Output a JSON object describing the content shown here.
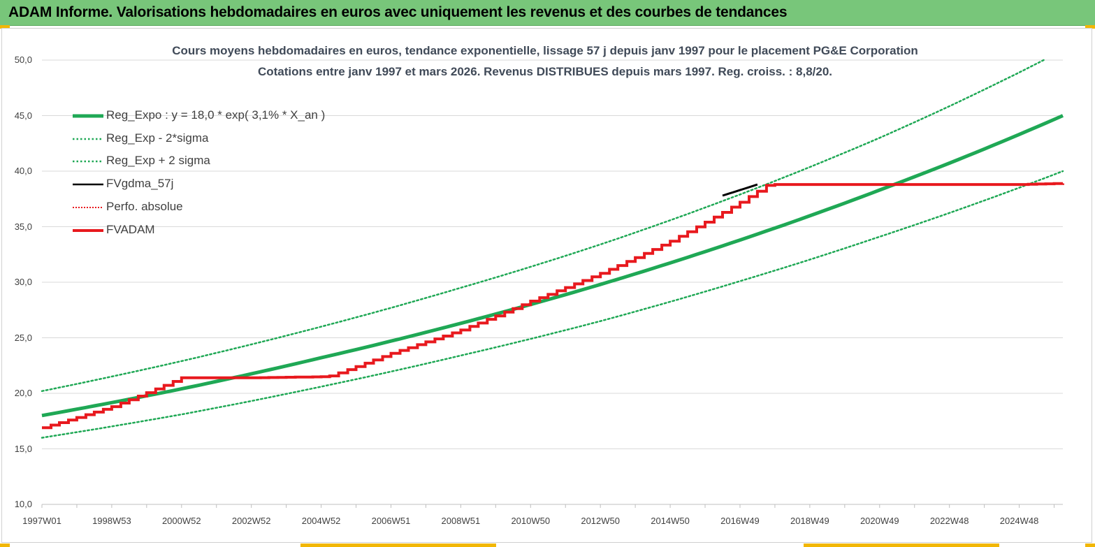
{
  "banner": {
    "title": "ADAM Informe. Valorisations hebdomadaires en euros avec uniquement les revenus et des courbes de tendances"
  },
  "colors": {
    "banner_bg": "#78c67a",
    "accent_corner": "#f2b705",
    "trend": "#1fa855",
    "fvadam": "#e8191e",
    "fvgdma": "#000000",
    "perfo": "#e8191e",
    "title_text": "#404a58"
  },
  "chart_data": {
    "type": "line",
    "title_line1": "Cours moyens hebdomadaires en euros, tendance exponentielle, lissage 57 j depuis janv 1997 pour le  placement PG&E Corporation",
    "title_line2": "Cotations entre janv 1997 et mars 2026. Revenus  DISTRIBUES depuis mars 1997.  Reg. croiss. : 8,8/20.",
    "ylim": [
      10,
      50
    ],
    "y_ticks": [
      "50,0",
      "45,0",
      "40,0",
      "35,0",
      "30,0",
      "25,0",
      "20,0",
      "15,0",
      "10,0"
    ],
    "y_tick_values": [
      50,
      45,
      40,
      35,
      30,
      25,
      20,
      15,
      10
    ],
    "x_range": [
      1997.0,
      2026.25
    ],
    "x_ticks": [
      "1997W01",
      "1998W53",
      "2000W52",
      "2002W52",
      "2004W52",
      "2006W51",
      "2008W51",
      "2010W50",
      "2012W50",
      "2014W50",
      "2016W49",
      "2018W49",
      "2020W49",
      "2022W48",
      "2024W48"
    ],
    "x_tick_values": [
      1997.0,
      1999.0,
      2001.0,
      2003.0,
      2005.0,
      2007.0,
      2009.0,
      2011.0,
      2013.0,
      2015.0,
      2017.0,
      2019.0,
      2021.0,
      2023.0,
      2025.0
    ],
    "grid": "horizontal",
    "legend_position": "top-left",
    "legend": [
      {
        "key": "reg_expo",
        "label": "Reg_Expo : y = 18,0 * exp( 3,1% *  X_an )",
        "style": "thick-solid",
        "color": "#1fa855"
      },
      {
        "key": "reg_minus",
        "label": "Reg_Exp - 2*sigma",
        "style": "dotted",
        "color": "#1fa855"
      },
      {
        "key": "reg_plus",
        "label": "Reg_Exp + 2 sigma",
        "style": "dotted",
        "color": "#1fa855"
      },
      {
        "key": "fvgdma",
        "label": "FVgdma_57j",
        "style": "solid",
        "color": "#000000"
      },
      {
        "key": "perfo",
        "label": "Perfo. absolue",
        "style": "dotted",
        "color": "#e8191e"
      },
      {
        "key": "fvadam",
        "label": "FVADAM",
        "style": "thick-solid",
        "color": "#e8191e"
      }
    ],
    "series": [
      {
        "name": "Reg_Expo : y = 18,0 * exp( 3,1% *  X_an )",
        "key": "reg_expo",
        "x": [
          1997.0,
          2001.0,
          2005.0,
          2009.0,
          2013.0,
          2017.0,
          2021.0,
          2026.25
        ],
        "y": [
          18.0,
          20.4,
          23.2,
          26.3,
          29.8,
          33.8,
          38.3,
          45.0
        ]
      },
      {
        "name": "Reg_Exp - 2*sigma",
        "key": "reg_minus",
        "x": [
          1997.0,
          2001.0,
          2005.0,
          2009.0,
          2013.0,
          2017.0,
          2021.0,
          2026.25
        ],
        "y": [
          16.0,
          18.1,
          20.6,
          23.4,
          26.5,
          30.1,
          34.1,
          40.0
        ]
      },
      {
        "name": "Reg_Exp + 2 sigma",
        "key": "reg_plus",
        "x": [
          1997.0,
          2001.0,
          2005.0,
          2009.0,
          2013.0,
          2017.0,
          2021.0,
          2025.7
        ],
        "y": [
          20.2,
          22.9,
          26.0,
          29.5,
          33.4,
          37.9,
          43.0,
          50.0
        ]
      },
      {
        "name": "FVgdma_57j",
        "key": "fvgdma",
        "x": [
          2016.5,
          2017.5
        ],
        "y": [
          37.8,
          38.8
        ]
      },
      {
        "name": "FVADAM",
        "key": "fvadam",
        "x": [
          1997.0,
          1999.0,
          2001.0,
          2002.0,
          2003.0,
          2005.2,
          2007.0,
          2009.0,
          2011.0,
          2013.0,
          2015.0,
          2017.0,
          2017.8,
          2019.0,
          2021.0,
          2023.0,
          2025.0,
          2026.25
        ],
        "y": [
          16.9,
          18.8,
          21.4,
          21.4,
          21.4,
          21.5,
          23.6,
          25.7,
          28.3,
          30.8,
          33.7,
          37.2,
          38.8,
          38.8,
          38.8,
          38.8,
          38.8,
          38.9
        ]
      }
    ]
  }
}
